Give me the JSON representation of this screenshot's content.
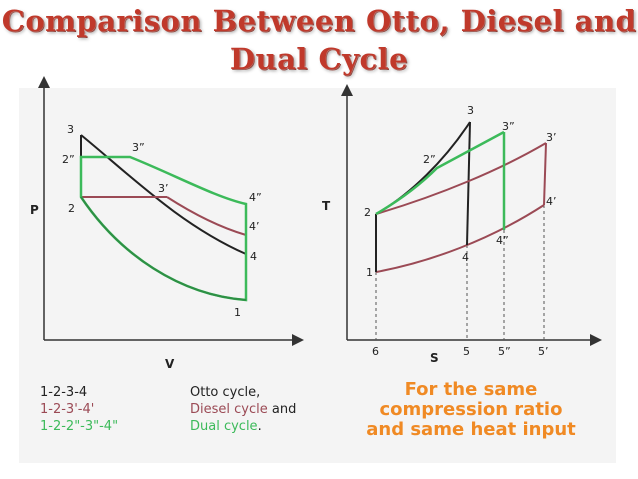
{
  "title": {
    "line1": "Comparison Between Otto, Diesel and",
    "line2": "Dual Cycle"
  },
  "colors": {
    "otto": "#222222",
    "diesel": "#9b4a55",
    "dual": "#3cba5a",
    "note": "#f08a24",
    "title": "#c0392b"
  },
  "pv": {
    "x_axis": "V",
    "y_axis": "P",
    "points": {
      "p1": "1",
      "p2": "2",
      "p2dd": "2”",
      "p3": "3",
      "p3dd": "3”",
      "p3d": "3’",
      "p4dd": "4”",
      "p4d": "4’",
      "p4": "4"
    }
  },
  "ts": {
    "x_axis": "S",
    "y_axis": "T",
    "points": {
      "p1": "1",
      "p2": "2",
      "p2dd": "2”",
      "p3": "3",
      "p3dd": "3”",
      "p3d": "3’",
      "p4dd": "4”",
      "p4d": "4’",
      "p4": "4"
    },
    "ticks": [
      "6",
      "5",
      "5”",
      "5’"
    ]
  },
  "legend": [
    {
      "path": "1-2-3-4",
      "name": "Otto cycle,",
      "suffix": ""
    },
    {
      "path": "1-2-3'-4'",
      "name": "Diesel cycle",
      "suffix": " and"
    },
    {
      "path": "1-2-2\"-3\"-4\"",
      "name": "Dual cycle",
      "suffix": "."
    }
  ],
  "note": {
    "line1": "For the  same",
    "line2": "compression  ratio",
    "line3": "and  same  heat  input"
  }
}
